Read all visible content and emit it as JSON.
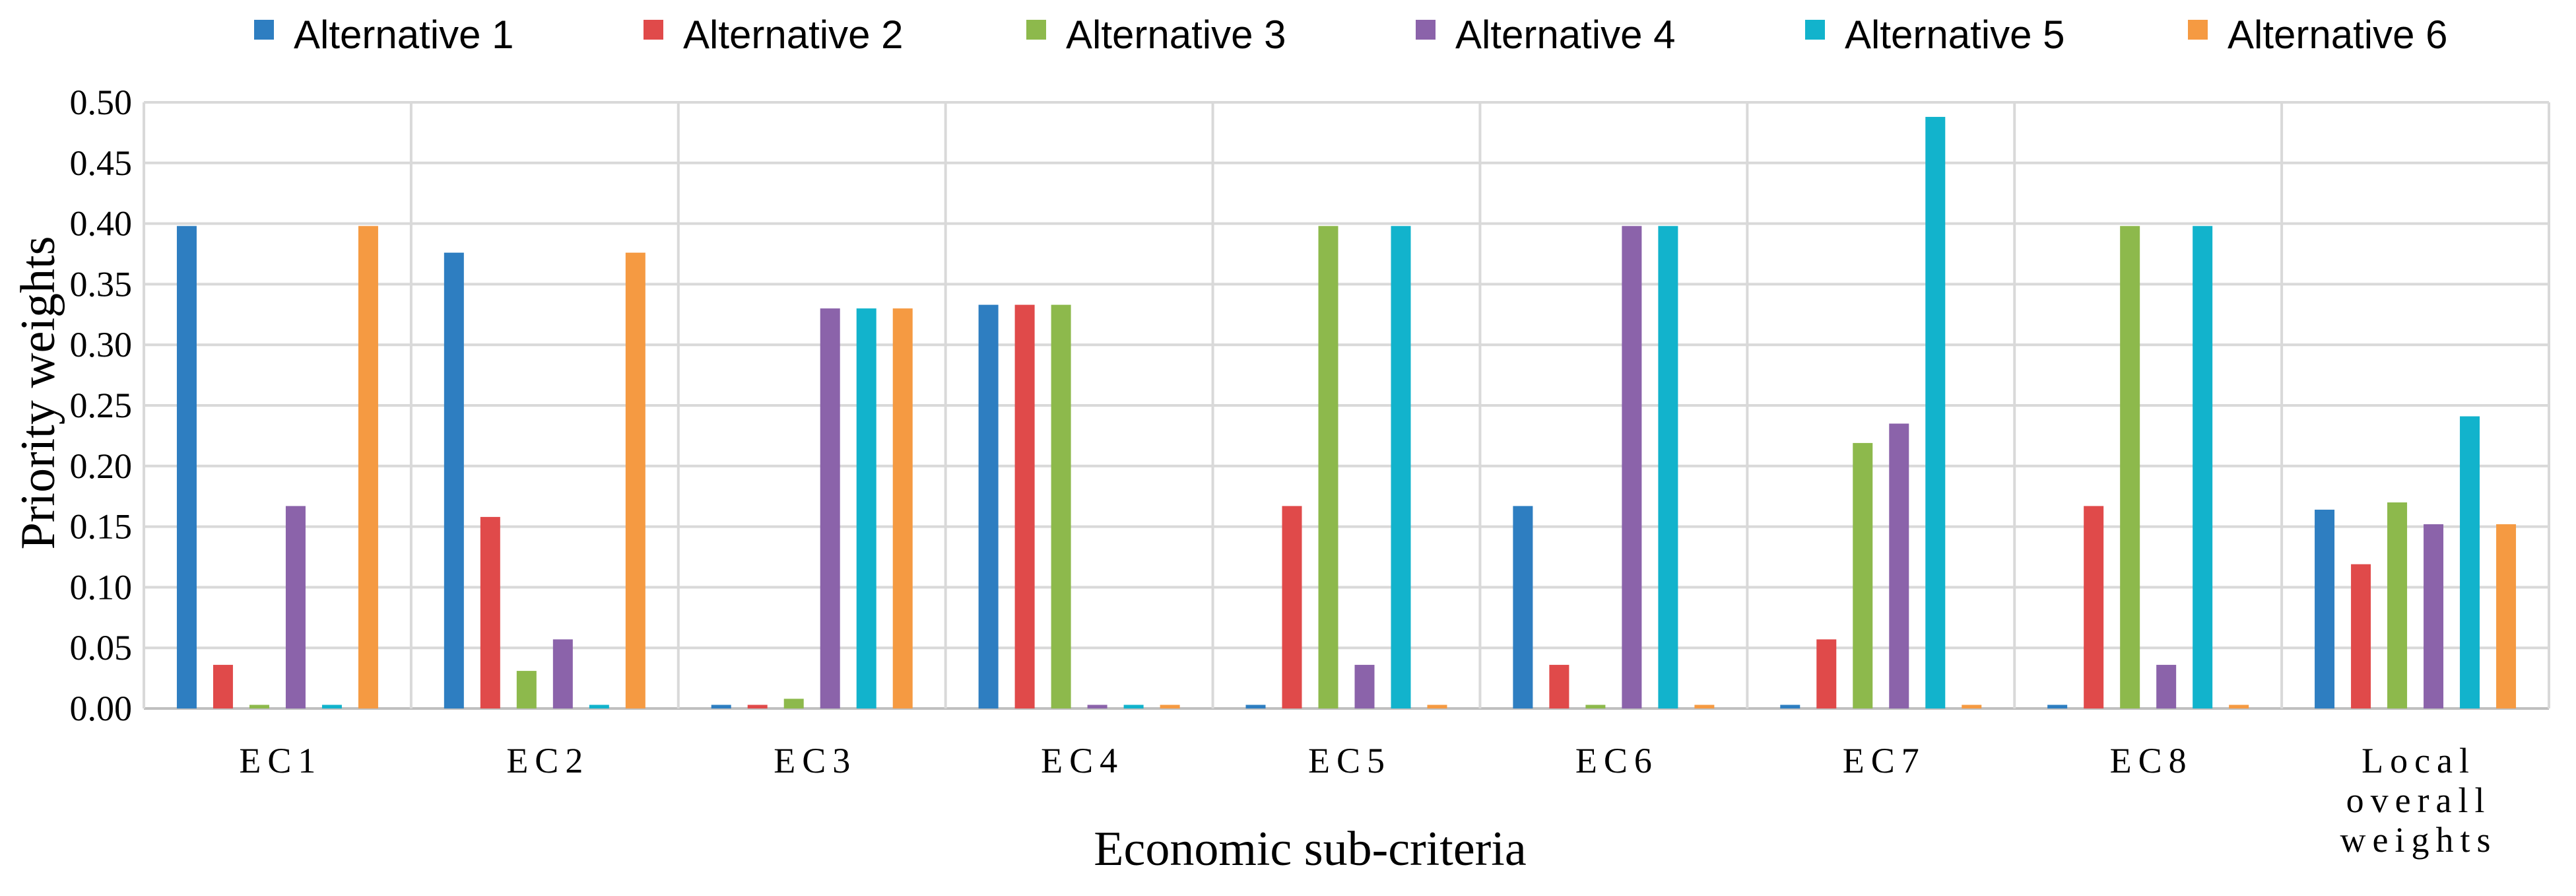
{
  "chart_data": {
    "type": "bar",
    "xlabel": "Economic sub-criteria",
    "ylabel": "Priority weights",
    "ylim": [
      0,
      0.5
    ],
    "yticks": [
      "0.00",
      "0.05",
      "0.10",
      "0.15",
      "0.20",
      "0.25",
      "0.30",
      "0.35",
      "0.40",
      "0.45",
      "0.50"
    ],
    "grid": true,
    "legend_position": "top",
    "categories": [
      [
        "EC1"
      ],
      [
        "EC2"
      ],
      [
        "EC3"
      ],
      [
        "EC4"
      ],
      [
        "EC5"
      ],
      [
        "EC6"
      ],
      [
        "EC7"
      ],
      [
        "EC8"
      ],
      [
        "Local",
        "overall",
        "weights"
      ]
    ],
    "series": [
      {
        "name": "Alternative 1",
        "color": "#2E7EC1",
        "values": [
          0.398,
          0.376,
          0.003,
          0.333,
          0.003,
          0.167,
          0.003,
          0.003,
          0.164
        ]
      },
      {
        "name": "Alternative 2",
        "color": "#E04A4A",
        "values": [
          0.036,
          0.158,
          0.003,
          0.333,
          0.167,
          0.036,
          0.057,
          0.167,
          0.119
        ]
      },
      {
        "name": "Alternative 3",
        "color": "#8DB94C",
        "values": [
          0.003,
          0.031,
          0.008,
          0.333,
          0.398,
          0.003,
          0.219,
          0.398,
          0.17
        ]
      },
      {
        "name": "Alternative 4",
        "color": "#8B63AA",
        "values": [
          0.167,
          0.057,
          0.33,
          0.003,
          0.036,
          0.398,
          0.235,
          0.036,
          0.152
        ]
      },
      {
        "name": "Alternative 5",
        "color": "#12B3CC",
        "values": [
          0.003,
          0.003,
          0.33,
          0.003,
          0.398,
          0.398,
          0.488,
          0.398,
          0.241
        ]
      },
      {
        "name": "Alternative 6",
        "color": "#F59A42",
        "values": [
          0.398,
          0.376,
          0.33,
          0.003,
          0.003,
          0.003,
          0.003,
          0.003,
          0.152
        ]
      }
    ]
  }
}
